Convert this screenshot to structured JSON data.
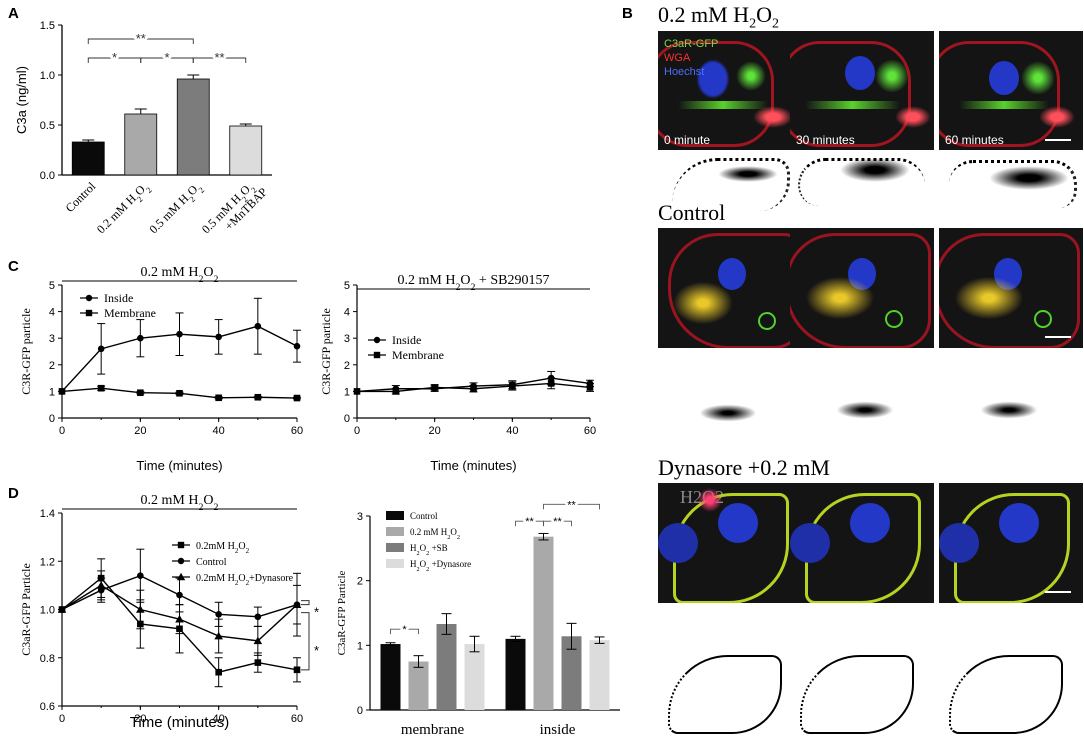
{
  "panel_letters": [
    "A",
    "B",
    "C",
    "D"
  ],
  "colors": {
    "red_membrane": "#c01c28",
    "green_gfp": "#4fd32a",
    "blue_nuclei": "#2438c8"
  },
  "panel_b": {
    "rows": [
      {
        "title_main": "0.2 mM H",
        "title_sub": "2",
        "title_tail": "O",
        "title_sub2": "2",
        "legend": [
          "C3aR-GFP",
          "WGA",
          "Hoechst"
        ],
        "time_labels": [
          "0 minute",
          "30 minutes",
          "60 minutes"
        ]
      },
      {
        "title_main": "Control"
      },
      {
        "title_main": "Dynasore +0.2 mM",
        "title_second": "H2O2"
      }
    ]
  },
  "chart_data": [
    {
      "id": "A",
      "type": "bar",
      "ylabel": "C3a (ng/ml)",
      "ylim": [
        0,
        1.5
      ],
      "yticks": [
        "0.0",
        "0.5",
        "1.0",
        "1.5"
      ],
      "categories": [
        "Control",
        "0.2 mM H2O2",
        "0.5 mM H2O2",
        "0.5 mM H2O2 +MnTBAP"
      ],
      "category_labels": [
        {
          "parts": [
            [
              "Control",
              ""
            ]
          ]
        },
        {
          "parts": [
            [
              "0.2 mM H",
              ""
            ],
            [
              "2",
              "sub"
            ],
            [
              "O",
              ""
            ],
            [
              "2",
              "sub"
            ]
          ]
        },
        {
          "parts": [
            [
              "0.5 mM H",
              ""
            ],
            [
              "2",
              "sub"
            ],
            [
              "O",
              ""
            ],
            [
              "2",
              "sub"
            ]
          ]
        },
        {
          "parts": [
            [
              "0.5 mM H",
              ""
            ],
            [
              "2",
              "sub"
            ],
            [
              "O",
              ""
            ],
            [
              "2",
              "sub"
            ]
          ],
          "line2": "+MnTBAP"
        }
      ],
      "values": [
        0.33,
        0.61,
        0.96,
        0.49
      ],
      "errors": [
        0.02,
        0.05,
        0.04,
        0.02
      ],
      "bar_colors": [
        "#0a0a0a",
        "#a9a9a9",
        "#7c7c7c",
        "#dcdcdc"
      ],
      "significance": [
        {
          "from": 0,
          "to": 2,
          "label": "**",
          "y": 1.36
        },
        {
          "from": 0,
          "to": 1,
          "label": "*",
          "y": 1.17
        },
        {
          "from": 1,
          "to": 2,
          "label": "*",
          "y": 1.17
        },
        {
          "from": 2,
          "to": 3,
          "label": "**",
          "y": 1.17
        }
      ]
    },
    {
      "id": "C1",
      "type": "line",
      "title_parts": [
        [
          "0.2 mM H",
          ""
        ],
        [
          "2",
          "sub"
        ],
        [
          "O",
          ""
        ],
        [
          "2",
          "sub"
        ]
      ],
      "xlabel": "Time (minutes)",
      "ylabel": "C3R-GFP particle",
      "xlim": [
        0,
        60
      ],
      "ylim": [
        0,
        5
      ],
      "xticks": [
        0,
        20,
        40,
        60
      ],
      "yticks": [
        0,
        1,
        2,
        3,
        4,
        5
      ],
      "x": [
        0,
        10,
        20,
        30,
        40,
        50,
        60
      ],
      "series": [
        {
          "name": "Inside",
          "marker": "circle",
          "values": [
            1,
            2.6,
            3.0,
            3.15,
            3.05,
            3.45,
            2.7
          ],
          "errors": [
            0,
            0.95,
            0.7,
            0.8,
            0.65,
            1.05,
            0.6
          ]
        },
        {
          "name": "Membrane",
          "marker": "square",
          "values": [
            1,
            1.12,
            0.95,
            0.93,
            0.76,
            0.78,
            0.75
          ],
          "errors": [
            0,
            0.08,
            0.04,
            0.04,
            0.04,
            0.03,
            0.03
          ]
        }
      ],
      "legend": "top-left"
    },
    {
      "id": "C2",
      "type": "line",
      "title_parts": [
        [
          "0.2 mM H",
          ""
        ],
        [
          "2",
          "sub"
        ],
        [
          "O",
          ""
        ],
        [
          "2",
          "sub"
        ],
        [
          " + SB290157",
          ""
        ]
      ],
      "xlabel": "Time (minutes)",
      "ylabel": "C3R-GFP particle",
      "xlim": [
        0,
        60
      ],
      "ylim": [
        0,
        5
      ],
      "xticks": [
        0,
        20,
        40,
        60
      ],
      "yticks": [
        0,
        1,
        2,
        3,
        4,
        5
      ],
      "x": [
        0,
        10,
        20,
        30,
        40,
        50,
        60
      ],
      "series": [
        {
          "name": "Inside",
          "marker": "circle",
          "values": [
            1,
            1.1,
            1.1,
            1.2,
            1.25,
            1.5,
            1.3
          ],
          "errors": [
            0,
            0.12,
            0.1,
            0.12,
            0.15,
            0.25,
            0.12
          ]
        },
        {
          "name": "Membrane",
          "marker": "square",
          "values": [
            1,
            1.0,
            1.15,
            1.1,
            1.2,
            1.3,
            1.15
          ],
          "errors": [
            0,
            0.1,
            0.1,
            0.12,
            0.15,
            0.2,
            0.15
          ]
        }
      ],
      "legend": "center-left"
    },
    {
      "id": "D1",
      "type": "line",
      "title_parts": [
        [
          "0.2 mM H",
          ""
        ],
        [
          "2",
          "sub"
        ],
        [
          "O",
          ""
        ],
        [
          "2",
          "sub"
        ]
      ],
      "xlabel": "Time (minutes)",
      "ylabel": "C3aR-GFP Particle",
      "xlim": [
        0,
        60
      ],
      "ylim": [
        0.6,
        1.4
      ],
      "xticks": [
        0,
        20,
        40,
        60
      ],
      "yticks": [
        "0.6",
        "0.8",
        "1.0",
        "1.2",
        "1.4"
      ],
      "x": [
        0,
        10,
        20,
        30,
        40,
        50,
        60
      ],
      "series": [
        {
          "name": "0.2mM H2O2",
          "name_parts": [
            [
              "0.2mM H",
              ""
            ],
            [
              "2",
              "sub"
            ],
            [
              "O",
              ""
            ],
            [
              "2",
              "sub"
            ]
          ],
          "marker": "square",
          "values": [
            1,
            1.13,
            0.94,
            0.92,
            0.74,
            0.78,
            0.75
          ],
          "errors": [
            0,
            0.08,
            0.1,
            0.1,
            0.06,
            0.04,
            0.05
          ]
        },
        {
          "name": "Control",
          "name_parts": [
            [
              "Control",
              ""
            ]
          ],
          "marker": "circle",
          "values": [
            1,
            1.08,
            1.14,
            1.06,
            0.98,
            0.97,
            1.02
          ],
          "errors": [
            0,
            0.05,
            0.11,
            0.07,
            0.05,
            0.04,
            0.13
          ]
        },
        {
          "name": "0.2mM H2O2+Dynasore",
          "name_parts": [
            [
              "0.2mM H",
              ""
            ],
            [
              "2",
              "sub"
            ],
            [
              "O",
              ""
            ],
            [
              "2",
              "sub"
            ],
            [
              "+Dynasore",
              ""
            ]
          ],
          "marker": "triangle",
          "values": [
            1,
            1.1,
            1.0,
            0.96,
            0.89,
            0.87,
            1.02
          ],
          "errors": [
            0,
            0.06,
            0.08,
            0.06,
            0.07,
            0.06,
            0.08
          ]
        }
      ],
      "significance": [
        {
          "label": "*",
          "between": [
            "Control",
            "0.2mM H2O2+Dynasore"
          ]
        },
        {
          "label": "*",
          "between": [
            "0.2mM H2O2+Dynasore",
            "0.2mM H2O2"
          ]
        }
      ],
      "legend": "top-right"
    },
    {
      "id": "D2",
      "type": "bar",
      "ylabel": "C3aR-GFP Particle",
      "ylim": [
        0,
        3
      ],
      "yticks": [
        0,
        1,
        2,
        3
      ],
      "categories": [
        "membrane",
        "inside"
      ],
      "series": [
        {
          "name": "Control",
          "name_parts": [
            [
              "Control",
              ""
            ]
          ],
          "color": "#0a0a0a",
          "values": [
            1.02,
            1.1
          ],
          "errors": [
            0.02,
            0.04
          ]
        },
        {
          "name": "0.2 mM H2O2",
          "name_parts": [
            [
              "0.2 mM H",
              ""
            ],
            [
              "2",
              "sub"
            ],
            [
              "O",
              ""
            ],
            [
              "2",
              "sub"
            ]
          ],
          "color": "#a9a9a9",
          "values": [
            0.75,
            2.68
          ],
          "errors": [
            0.09,
            0.05
          ]
        },
        {
          "name": "H2O2 +SB",
          "name_parts": [
            [
              "H",
              ""
            ],
            [
              "2",
              "sub"
            ],
            [
              "O",
              ""
            ],
            [
              "2",
              "sub"
            ],
            [
              " +SB",
              ""
            ]
          ],
          "color": "#7c7c7c",
          "values": [
            1.33,
            1.14
          ],
          "errors": [
            0.16,
            0.2
          ]
        },
        {
          "name": "H2O2 +Dynasore",
          "name_parts": [
            [
              "H",
              ""
            ],
            [
              "2",
              "sub"
            ],
            [
              "O",
              ""
            ],
            [
              "2",
              "sub"
            ],
            [
              " +Dynasore",
              ""
            ]
          ],
          "color": "#dcdcdc",
          "values": [
            1.02,
            1.08
          ],
          "errors": [
            0.12,
            0.05
          ]
        }
      ],
      "significance": [
        {
          "group": 0,
          "from": 0,
          "to": 1,
          "label": "*",
          "y": 1.25
        },
        {
          "group": 1,
          "from": 0,
          "to": 1,
          "label": "**",
          "y": 2.92
        },
        {
          "group": 1,
          "from": 1,
          "to": 2,
          "label": "**",
          "y": 2.92
        },
        {
          "group": 1,
          "from": 1,
          "to": 3,
          "label": "**",
          "y": 3.18
        }
      ],
      "legend": "top-left"
    }
  ]
}
